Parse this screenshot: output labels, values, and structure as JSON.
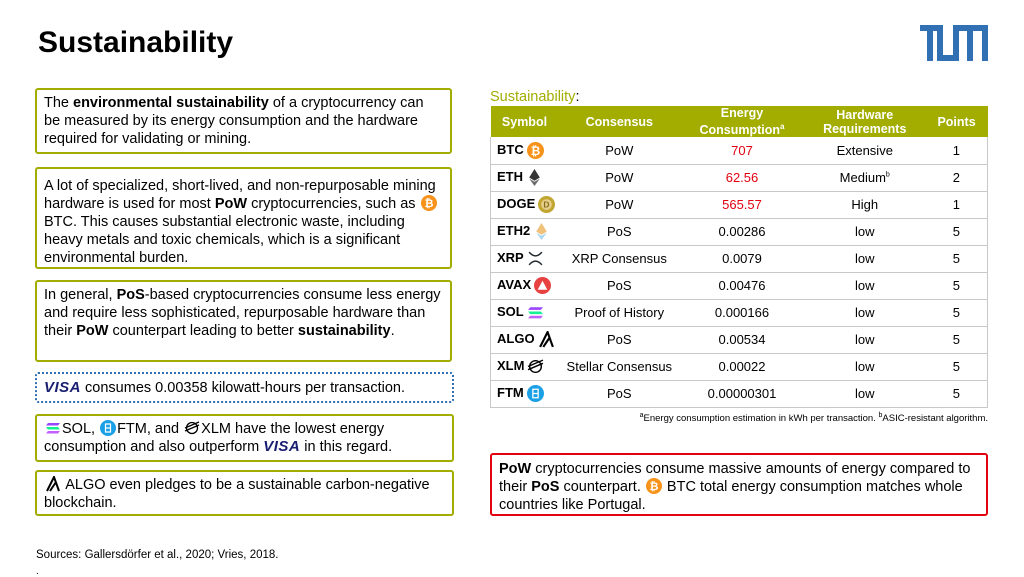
{
  "title": "Sustainability",
  "logo": "TUM",
  "boxes": {
    "b1": {
      "p1": "The ",
      "bold1": "environmental sustainability",
      "p2": " of a cryptocurrency can be measured by its energy consumption and the hardware required for validating or mining."
    },
    "b2": {
      "p1": "A lot of specialized, short-lived, and non-repurposable mining hardware is used for most ",
      "bold1": "PoW",
      "p2": " cryptocurrencies, such as ",
      "p3": "BTC. This causes substantial electronic waste, including heavy metals and toxic chemicals, which is a significant environmental burden."
    },
    "b3": {
      "p1": "In general, ",
      "bold1": "PoS",
      "p2": "-based cryptocurrencies consume less energy and require less sophisticated, repurposable hardware than their ",
      "bold2": "PoW",
      "p3": " counterpart leading to better ",
      "bold3": "sustainability",
      "p4": "."
    },
    "b4": {
      "visa": "VISA",
      "text": " consumes 0.00358 kilowatt-hours per transaction."
    },
    "b5": {
      "p1": "SOL, ",
      "p2": "FTM, and ",
      "p3": "XLM have the lowest energy consumption and also outperform ",
      "visa": "VISA",
      "p4": " in this regard."
    },
    "b6": {
      "text": " ALGO even pledges to be a sustainable carbon-negative blockchain."
    },
    "b7": {
      "bold1": "PoW",
      "p1": " cryptocurrencies consume massive amounts of energy compared to their ",
      "bold2": "PoS",
      "p2": " counterpart. ",
      "p3": " BTC total energy consumption matches whole countries like Portugal."
    }
  },
  "table_label": "Sustainability",
  "table_label_colon": ":",
  "headers": {
    "symbol": "Symbol",
    "consensus": "Consensus",
    "energy": "Energy Consumption",
    "energy_sup": "a",
    "hardware": "Hardware Requirements",
    "points": "Points"
  },
  "rows": [
    {
      "symbol": "BTC",
      "consensus": "PoW",
      "energy": "707",
      "hardware": "Extensive",
      "hw_sup": "",
      "points": "1",
      "icon": "bitcoin-icon",
      "color": "#f7931a"
    },
    {
      "symbol": "ETH",
      "consensus": "PoW",
      "energy": "62.56",
      "hardware": "Medium",
      "hw_sup": "b",
      "points": "2",
      "icon": "ethereum-icon",
      "color": "#343434"
    },
    {
      "symbol": "DOGE",
      "consensus": "PoW",
      "energy": "565.57",
      "hardware": "High",
      "hw_sup": "",
      "points": "1",
      "icon": "dogecoin-icon",
      "color": "#c2a633"
    },
    {
      "symbol": "ETH2",
      "consensus": "PoS",
      "energy": "0.00286",
      "hardware": "low",
      "hw_sup": "",
      "points": "5",
      "icon": "eth2-icon",
      "color": "#e8b86a"
    },
    {
      "symbol": "XRP",
      "consensus": "XRP Consensus",
      "energy": "0.0079",
      "hardware": "low",
      "hw_sup": "",
      "points": "5",
      "icon": "xrp-icon",
      "color": "#23292f"
    },
    {
      "symbol": "AVAX",
      "consensus": "PoS",
      "energy": "0.00476",
      "hardware": "low",
      "hw_sup": "",
      "points": "5",
      "icon": "avalanche-icon",
      "color": "#e84142"
    },
    {
      "symbol": "SOL",
      "consensus": "Proof of History",
      "energy": "0.000166",
      "hardware": "low",
      "hw_sup": "",
      "points": "5",
      "icon": "solana-icon",
      "color": "#9945ff"
    },
    {
      "symbol": "ALGO",
      "consensus": "PoS",
      "energy": "0.00534",
      "hardware": "low",
      "hw_sup": "",
      "points": "5",
      "icon": "algorand-icon",
      "color": "#000000"
    },
    {
      "symbol": "XLM",
      "consensus": "Stellar Consensus",
      "energy": "0.00022",
      "hardware": "low",
      "hw_sup": "",
      "points": "5",
      "icon": "stellar-icon",
      "color": "#000000"
    },
    {
      "symbol": "FTM",
      "consensus": "PoS",
      "energy": "0.00000301",
      "hardware": "low",
      "hw_sup": "",
      "points": "5",
      "icon": "fantom-icon",
      "color": "#1969ff"
    }
  ],
  "red_energy_rows": [
    0,
    1,
    2
  ],
  "footnote": {
    "a": "a",
    "a_text": "Energy consumption estimation in kWh per transaction. ",
    "b": "b",
    "b_text": "ASIC-resistant algorithm."
  },
  "sources": "Sources: Gallersdörfer et al., 2020; Vries, 2018.",
  "trailing": ".",
  "colors": {
    "accent": "#a2ad00",
    "red": "#e3000f",
    "tum_blue": "#3070b3",
    "visa": "#1a1f71"
  }
}
